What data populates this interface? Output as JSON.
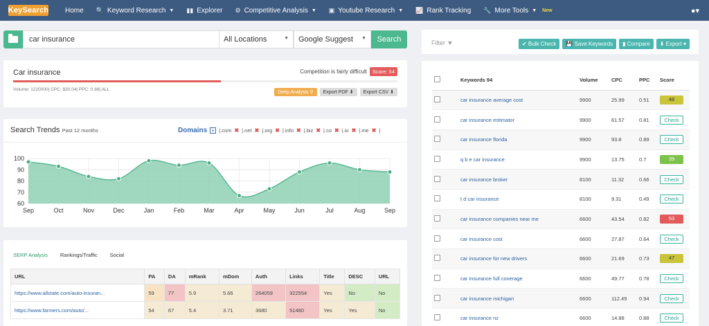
{
  "nav": {
    "logo": "KeySearch",
    "items": [
      {
        "label": "Home",
        "icon": ""
      },
      {
        "label": "Keyword Research",
        "icon": "🔍",
        "caret": true
      },
      {
        "label": "Explorer",
        "icon": "▮▮"
      },
      {
        "label": "Competitive Analysis",
        "icon": "⚙",
        "caret": true
      },
      {
        "label": "Youtube Research",
        "icon": "▣",
        "caret": true
      },
      {
        "label": "Rank Tracking",
        "icon": "📈"
      },
      {
        "label": "More Tools",
        "icon": "🔧",
        "caret": true,
        "badge": "New"
      }
    ]
  },
  "search": {
    "query": "car insurance",
    "location": "All Locations",
    "source": "Google Suggest",
    "button": "Search"
  },
  "summary": {
    "keyword": "Car insurance",
    "competition": "Competition is fairly difficult",
    "score": "Score: 54",
    "difficulty": 54,
    "meta": "Volume: 1220000| CPC: $30.04| PPC: 0.88| ALL",
    "deep": "Deep Analysis",
    "pdf": "Export PDF",
    "csv": "Export CSV"
  },
  "trends": {
    "title": "Search Trends",
    "sub": "Past 12 months",
    "domains_label": "Domains",
    "domains": [
      "|.com",
      "|.net",
      "|.org",
      "|.info",
      "|.biz",
      "|.co",
      "|.io",
      "|.me",
      "|"
    ]
  },
  "chart_data": {
    "type": "area",
    "title": "Search Trends",
    "categories": [
      "Sep",
      "Oct",
      "Nov",
      "Dec",
      "Jan",
      "Feb",
      "Mar",
      "Apr",
      "May",
      "Jun",
      "Jul",
      "Aug",
      "Sep"
    ],
    "values": [
      97,
      93,
      84,
      82,
      98,
      94,
      96,
      67,
      73,
      88,
      96,
      90,
      88
    ],
    "yticks": [
      100,
      90,
      80,
      70,
      60
    ],
    "ylim": [
      60,
      100
    ],
    "color": "#8ed0b4",
    "stroke": "#5cb894"
  },
  "serp": {
    "tabs": [
      "SERP Analysis",
      "Rankings/Traffic",
      "Social"
    ],
    "columns": [
      "URL",
      "PA",
      "DA",
      "mRank",
      "mDom",
      "Auth",
      "Links",
      "Title",
      "DESC",
      "URL"
    ],
    "rows": [
      [
        "https://www.allstate.com/auto-insuran...",
        "59",
        "77",
        "5.9",
        "5.66",
        "264059",
        "322554",
        "Yes",
        "No",
        "No"
      ],
      [
        "https://www.farmers.com/auto/...",
        "54",
        "67",
        "5.4",
        "3.71",
        "3680",
        "51480",
        "Yes",
        "Yes",
        "No"
      ]
    ]
  },
  "kw_toolbar": {
    "filter": "Filter",
    "buttons": [
      "Bulk Check",
      "Save Keywords",
      "Compare",
      "Export"
    ]
  },
  "keywords": {
    "columns": [
      "Keywords 94",
      "Volume",
      "CPC",
      "PPC",
      "Score"
    ],
    "rows": [
      {
        "kw": "car insurance average cost",
        "vol": "9900",
        "cpc": "25.99",
        "ppc": "0.51",
        "score": "48",
        "style": "olive"
      },
      {
        "kw": "car insurance estimator",
        "vol": "9900",
        "cpc": "61.57",
        "ppc": "0.81",
        "score": "Check",
        "style": "check"
      },
      {
        "kw": "car insurance florida",
        "vol": "9900",
        "cpc": "93.8",
        "ppc": "0.89",
        "score": "Check",
        "style": "check"
      },
      {
        "kw": "q b e car insurance",
        "vol": "9900",
        "cpc": "13.75",
        "ppc": "0.7",
        "score": "39",
        "style": "green"
      },
      {
        "kw": "car insurance broker",
        "vol": "8100",
        "cpc": "11.32",
        "ppc": "0.66",
        "score": "Check",
        "style": "check"
      },
      {
        "kw": "t d car insurance",
        "vol": "8100",
        "cpc": "9.31",
        "ppc": "0.49",
        "score": "Check",
        "style": "check"
      },
      {
        "kw": "car insurance companies near me",
        "vol": "6600",
        "cpc": "43.54",
        "ppc": "0.82",
        "score": "53",
        "style": "red"
      },
      {
        "kw": "car insurance cost",
        "vol": "6600",
        "cpc": "27.87",
        "ppc": "0.64",
        "score": "Check",
        "style": "check"
      },
      {
        "kw": "car insurance for new drivers",
        "vol": "6600",
        "cpc": "21.69",
        "ppc": "0.73",
        "score": "47",
        "style": "olive"
      },
      {
        "kw": "car insurance full coverage",
        "vol": "6600",
        "cpc": "49.77",
        "ppc": "0.78",
        "score": "Check",
        "style": "check"
      },
      {
        "kw": "car insurance michigan",
        "vol": "6600",
        "cpc": "112.49",
        "ppc": "0.94",
        "score": "Check",
        "style": "check"
      },
      {
        "kw": "car insurance nz",
        "vol": "6600",
        "cpc": "14.88",
        "ppc": "0.88",
        "score": "Check",
        "style": "check"
      }
    ]
  }
}
